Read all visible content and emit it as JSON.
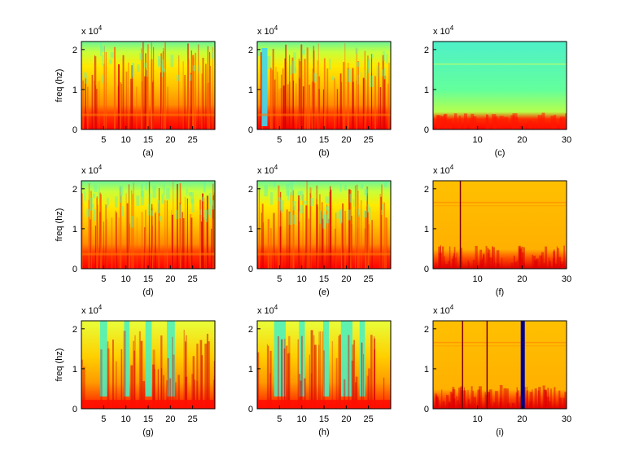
{
  "figure": {
    "ylabel": "freq (hz)",
    "colormap": [
      "#ff0000",
      "#ff4a00",
      "#ff8c00",
      "#ffc400",
      "#ffff00",
      "#b6ff4a",
      "#63ff9c",
      "#3cf0d2"
    ],
    "panels": [
      {
        "letter": "(a)",
        "exponent_label": "x 10",
        "exponent": "4",
        "yticks": [
          "0",
          "1",
          "2"
        ],
        "xticks": [
          "5",
          "10",
          "15",
          "20",
          "25"
        ]
      },
      {
        "letter": "(b)",
        "exponent_label": "x 10",
        "exponent": "4",
        "yticks": [
          "0",
          "1",
          "2"
        ],
        "xticks": [
          "5",
          "10",
          "15",
          "20",
          "25"
        ]
      },
      {
        "letter": "(c)",
        "exponent_label": "x 10",
        "exponent": "4",
        "yticks": [
          "0",
          "1",
          "2"
        ],
        "xticks": [
          "10",
          "20",
          "30"
        ]
      },
      {
        "letter": "(d)",
        "exponent_label": "x 10",
        "exponent": "4",
        "yticks": [
          "0",
          "1",
          "2"
        ],
        "xticks": [
          "5",
          "10",
          "15",
          "20",
          "25"
        ]
      },
      {
        "letter": "(e)",
        "exponent_label": "x 10",
        "exponent": "4",
        "yticks": [
          "0",
          "1",
          "2"
        ],
        "xticks": [
          "5",
          "10",
          "15",
          "20",
          "25"
        ]
      },
      {
        "letter": "(f)",
        "exponent_label": "x 10",
        "exponent": "4",
        "yticks": [
          "0",
          "1",
          "2"
        ],
        "xticks": [
          "10",
          "20",
          "30"
        ]
      },
      {
        "letter": "(g)",
        "exponent_label": "x 10",
        "exponent": "4",
        "yticks": [
          "0",
          "1",
          "2"
        ],
        "xticks": [
          "5",
          "10",
          "15",
          "20",
          "25"
        ]
      },
      {
        "letter": "(h)",
        "exponent_label": "x 10",
        "exponent": "4",
        "yticks": [
          "0",
          "1",
          "2"
        ],
        "xticks": [
          "5",
          "10",
          "15",
          "20",
          "25"
        ]
      },
      {
        "letter": "(i)",
        "exponent_label": "x 10",
        "exponent": "4",
        "yticks": [
          "0",
          "1",
          "2"
        ],
        "xticks": [
          "10",
          "20",
          "30"
        ]
      }
    ]
  },
  "chart_data": [
    {
      "type": "heatmap",
      "title": "",
      "label": "(a)",
      "ylabel": "freq (hz)",
      "ylabel_multiplier": "x 10^4",
      "xlim": [
        0,
        30
      ],
      "ylim": [
        0,
        22000
      ],
      "xticks": [
        5,
        10,
        15,
        20,
        25
      ],
      "yticks": [
        0,
        1,
        2
      ],
      "content": "spectrogram: red low-frequency band up to ~0.4e4 Hz, yellow/orange mid band, many vertical transient streaks, cyan near top"
    },
    {
      "type": "heatmap",
      "title": "",
      "label": "(b)",
      "ylabel": "",
      "ylabel_multiplier": "x 10^4",
      "xlim": [
        0,
        30
      ],
      "ylim": [
        0,
        22000
      ],
      "xticks": [
        5,
        10,
        15,
        20,
        25
      ],
      "yticks": [
        0,
        1,
        2
      ],
      "content": "spectrogram similar to (a), cyan gap near x = 1-2 at start, dense vertical streaks"
    },
    {
      "type": "heatmap",
      "title": "",
      "label": "(c)",
      "ylabel": "",
      "ylabel_multiplier": "x 10^4",
      "xlim": [
        0,
        30
      ],
      "ylim": [
        0,
        22000
      ],
      "xticks": [
        10,
        20,
        30
      ],
      "yticks": [
        0,
        1,
        2
      ],
      "content": "mostly cyan/green background, red energy only below ~0.4e4 Hz, faint horizontal line near 1.6e4 Hz"
    },
    {
      "type": "heatmap",
      "title": "",
      "label": "(d)",
      "ylabel": "freq (hz)",
      "ylabel_multiplier": "x 10^4",
      "xlim": [
        0,
        30
      ],
      "ylim": [
        0,
        22000
      ],
      "xticks": [
        5,
        10,
        15,
        20,
        25
      ],
      "yticks": [
        0,
        1,
        2
      ],
      "content": "spectrogram: red band below ~0.4e4 Hz, yellow/green upper region, vertical streaks"
    },
    {
      "type": "heatmap",
      "title": "",
      "label": "(e)",
      "ylabel": "",
      "ylabel_multiplier": "x 10^4",
      "xlim": [
        0,
        30
      ],
      "ylim": [
        0,
        22000
      ],
      "xticks": [
        5,
        10,
        15,
        20,
        25
      ],
      "yticks": [
        0,
        1,
        2
      ],
      "content": "spectrogram similar to (d) with more cyan in upper region"
    },
    {
      "type": "heatmap",
      "title": "",
      "label": "(f)",
      "ylabel": "",
      "ylabel_multiplier": "x 10^4",
      "xlim": [
        0,
        30
      ],
      "ylim": [
        0,
        22000
      ],
      "xticks": [
        10,
        20,
        30
      ],
      "yticks": [
        0,
        1,
        2
      ],
      "content": "uniform orange/yellow noise, red bottom band, dark vertical line near x = 6, faint horizontal lines near 1.6e4 Hz"
    },
    {
      "type": "heatmap",
      "title": "",
      "label": "(g)",
      "ylabel": "freq (hz)",
      "ylabel_multiplier": "x 10^4",
      "xlim": [
        0,
        30
      ],
      "ylim": [
        0,
        22000
      ],
      "xticks": [
        5,
        10,
        15,
        20,
        25
      ],
      "yticks": [
        0,
        1,
        2
      ],
      "content": "spectrogram with periodic bursts of broadband energy separated by cyan gaps near x = 5, 10, 15, 20"
    },
    {
      "type": "heatmap",
      "title": "",
      "label": "(h)",
      "ylabel": "",
      "ylabel_multiplier": "x 10^4",
      "xlim": [
        0,
        30
      ],
      "ylim": [
        0,
        22000
      ],
      "xticks": [
        5,
        10,
        15,
        20,
        25
      ],
      "yticks": [
        0,
        1,
        2
      ],
      "content": "similar to (g) with wider cyan gaps near x = 5 and x = 20"
    },
    {
      "type": "heatmap",
      "title": "",
      "label": "(i)",
      "ylabel": "",
      "ylabel_multiplier": "x 10^4",
      "xlim": [
        0,
        30
      ],
      "ylim": [
        0,
        22000
      ],
      "xticks": [
        10,
        20,
        30
      ],
      "yticks": [
        0,
        1,
        2
      ],
      "content": "orange noise with red bottom band, dark vertical lines near x = 6.5 and 12, dark blue band near x = 20"
    }
  ]
}
